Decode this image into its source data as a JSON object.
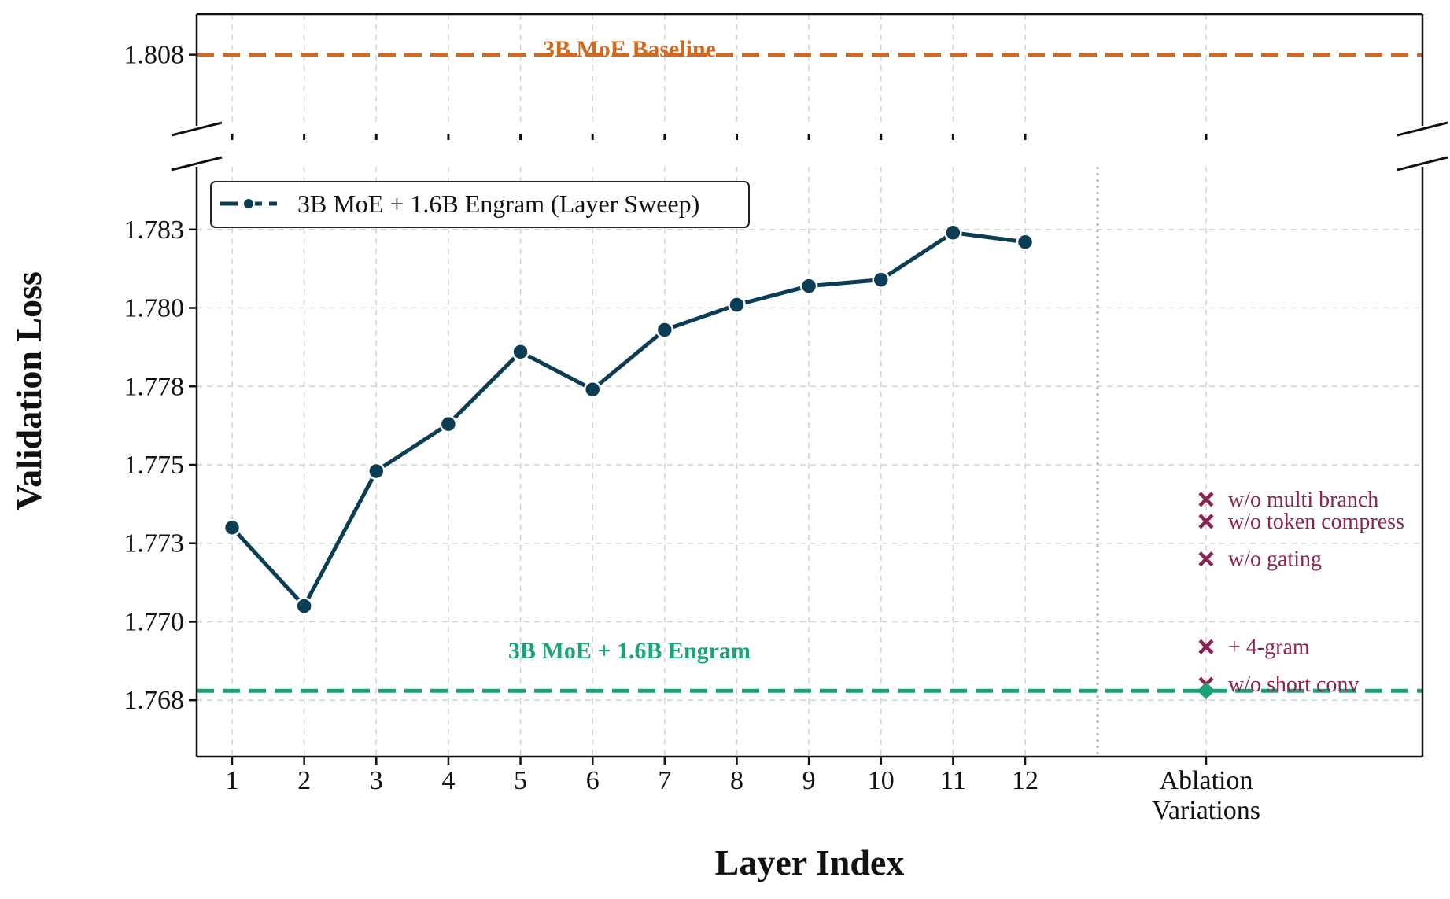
{
  "chart_data": {
    "type": "line",
    "xlabel": "Layer Index",
    "ylabel": "Validation Loss",
    "x_tick_labels": [
      "1",
      "2",
      "3",
      "4",
      "5",
      "6",
      "7",
      "8",
      "9",
      "10",
      "11",
      "12",
      "Ablation\nVariations"
    ],
    "y_tick_labels": [
      "1.808",
      "1.783",
      "1.780",
      "1.778",
      "1.775",
      "1.773",
      "1.770",
      "1.768"
    ],
    "y_ticks_top": [
      1.808
    ],
    "y_ticks_bottom": [
      1.783,
      1.7805,
      1.778,
      1.7755,
      1.773,
      1.7705,
      1.768
    ],
    "ylim_bottom": [
      1.7662,
      1.785
    ],
    "ylim_top": [
      1.8045,
      1.81
    ],
    "broken_y_axis": true,
    "grid": true,
    "legend_position": "upper-left",
    "series": [
      {
        "name": "3B MoE + 1.6B Engram (Layer Sweep)",
        "color": "#0b3d55",
        "x": [
          1,
          2,
          3,
          4,
          5,
          6,
          7,
          8,
          9,
          10,
          11,
          12
        ],
        "values": [
          1.7735,
          1.771,
          1.7753,
          1.7768,
          1.7791,
          1.7779,
          1.7798,
          1.7806,
          1.7812,
          1.7814,
          1.7829,
          1.7826
        ]
      }
    ],
    "reference_lines": [
      {
        "label": "3B MoE Baseline",
        "value": 1.808,
        "color": "#d2691e"
      },
      {
        "label": "3B MoE + 1.6B Engram",
        "value": 1.7683,
        "color": "#1aa37a"
      }
    ],
    "ablations": {
      "color": "#8b2252",
      "marker_color_reference": "#1aa37a",
      "points": [
        {
          "label": "w/o multi branch",
          "value": 1.7744
        },
        {
          "label": "w/o token compress",
          "value": 1.7737
        },
        {
          "label": "w/o gating",
          "value": 1.7725
        },
        {
          "label": "+ 4-gram",
          "value": 1.7697
        },
        {
          "label": "w/o short conv",
          "value": 1.7685
        }
      ]
    }
  }
}
